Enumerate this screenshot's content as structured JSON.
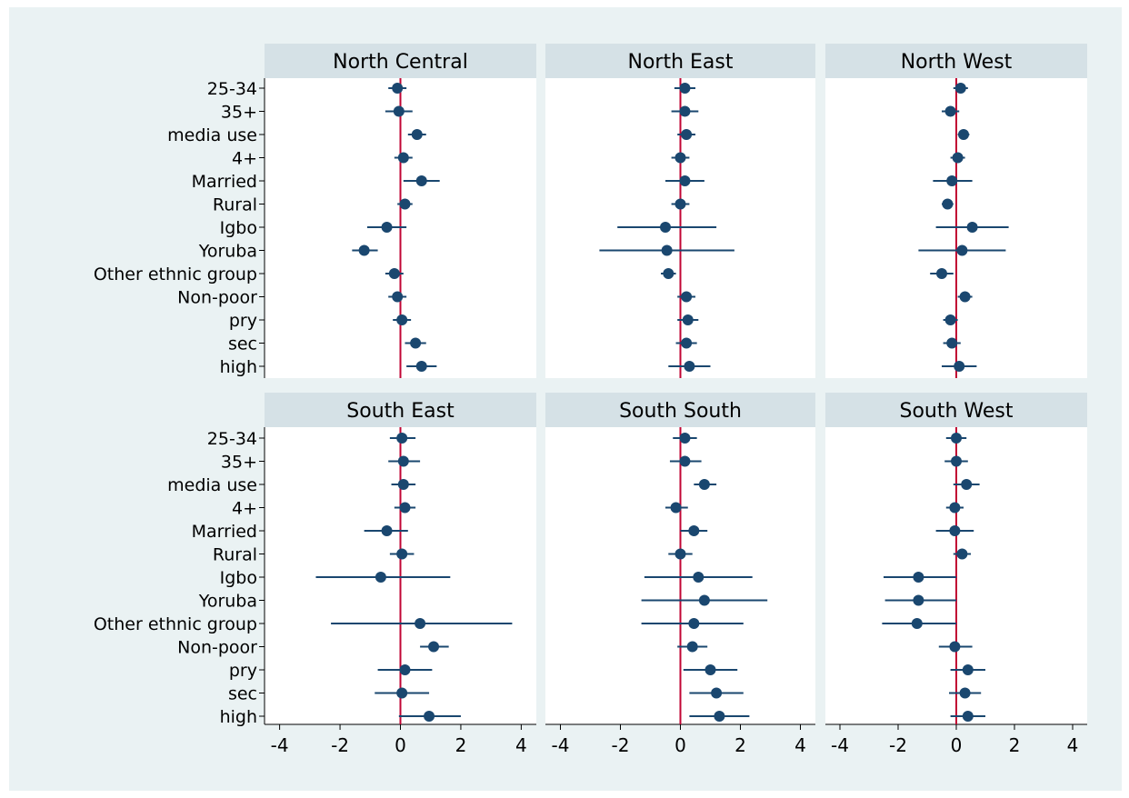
{
  "chart_data": {
    "type": "coefficient-plot",
    "xlim": [
      -4.5,
      4.5
    ],
    "xticks": [
      -4,
      -2,
      0,
      2,
      4
    ],
    "reference_line": 0,
    "grid": false,
    "categories": [
      "25-34",
      "35+",
      "media use",
      "4+",
      "Married",
      "Rural",
      "Igbo",
      "Yoruba",
      "Other ethnic group",
      "Non-poor",
      "pry",
      "sec",
      "high"
    ],
    "colors": {
      "background": "#ffffff",
      "plot_region_outer": "#eaf2f3",
      "panel_header": "#d5e1e6",
      "marker": "#1a476f",
      "reference_line": "#c10534",
      "axis": "#000000"
    },
    "panels": [
      {
        "title": "North Central",
        "points": [
          {
            "est": -0.1,
            "lo": -0.4,
            "hi": 0.2
          },
          {
            "est": -0.05,
            "lo": -0.5,
            "hi": 0.4
          },
          {
            "est": 0.55,
            "lo": 0.25,
            "hi": 0.85
          },
          {
            "est": 0.1,
            "lo": -0.2,
            "hi": 0.4
          },
          {
            "est": 0.7,
            "lo": 0.1,
            "hi": 1.3
          },
          {
            "est": 0.15,
            "lo": -0.1,
            "hi": 0.4
          },
          {
            "est": -0.45,
            "lo": -1.1,
            "hi": 0.2
          },
          {
            "est": -1.2,
            "lo": -1.6,
            "hi": -0.75
          },
          {
            "est": -0.2,
            "lo": -0.5,
            "hi": 0.1
          },
          {
            "est": -0.1,
            "lo": -0.4,
            "hi": 0.2
          },
          {
            "est": 0.05,
            "lo": -0.25,
            "hi": 0.35
          },
          {
            "est": 0.5,
            "lo": 0.15,
            "hi": 0.85
          },
          {
            "est": 0.7,
            "lo": 0.2,
            "hi": 1.2
          }
        ]
      },
      {
        "title": "North East",
        "points": [
          {
            "est": 0.15,
            "lo": -0.2,
            "hi": 0.5
          },
          {
            "est": 0.15,
            "lo": -0.3,
            "hi": 0.6
          },
          {
            "est": 0.2,
            "lo": -0.1,
            "hi": 0.5
          },
          {
            "est": 0.0,
            "lo": -0.3,
            "hi": 0.3
          },
          {
            "est": 0.15,
            "lo": -0.5,
            "hi": 0.8
          },
          {
            "est": 0.0,
            "lo": -0.3,
            "hi": 0.3
          },
          {
            "est": -0.5,
            "lo": -2.1,
            "hi": 1.2
          },
          {
            "est": -0.45,
            "lo": -2.7,
            "hi": 1.8
          },
          {
            "est": -0.4,
            "lo": -0.65,
            "hi": -0.15
          },
          {
            "est": 0.2,
            "lo": -0.1,
            "hi": 0.5
          },
          {
            "est": 0.25,
            "lo": -0.1,
            "hi": 0.6
          },
          {
            "est": 0.2,
            "lo": -0.15,
            "hi": 0.55
          },
          {
            "est": 0.3,
            "lo": -0.4,
            "hi": 1.0
          }
        ]
      },
      {
        "title": "North West",
        "points": [
          {
            "est": 0.15,
            "lo": -0.1,
            "hi": 0.4
          },
          {
            "est": -0.2,
            "lo": -0.5,
            "hi": 0.1
          },
          {
            "est": 0.25,
            "lo": 0.05,
            "hi": 0.45
          },
          {
            "est": 0.05,
            "lo": -0.2,
            "hi": 0.3
          },
          {
            "est": -0.15,
            "lo": -0.8,
            "hi": 0.55
          },
          {
            "est": -0.3,
            "lo": -0.5,
            "hi": -0.1
          },
          {
            "est": 0.55,
            "lo": -0.7,
            "hi": 1.8
          },
          {
            "est": 0.2,
            "lo": -1.3,
            "hi": 1.7
          },
          {
            "est": -0.5,
            "lo": -0.9,
            "hi": -0.1
          },
          {
            "est": 0.3,
            "lo": 0.05,
            "hi": 0.55
          },
          {
            "est": -0.2,
            "lo": -0.45,
            "hi": 0.05
          },
          {
            "est": -0.15,
            "lo": -0.45,
            "hi": 0.15
          },
          {
            "est": 0.1,
            "lo": -0.5,
            "hi": 0.7
          }
        ]
      },
      {
        "title": "South East",
        "points": [
          {
            "est": 0.05,
            "lo": -0.35,
            "hi": 0.5
          },
          {
            "est": 0.1,
            "lo": -0.4,
            "hi": 0.65
          },
          {
            "est": 0.1,
            "lo": -0.3,
            "hi": 0.5
          },
          {
            "est": 0.15,
            "lo": -0.2,
            "hi": 0.5
          },
          {
            "est": -0.45,
            "lo": -1.2,
            "hi": 0.25
          },
          {
            "est": 0.05,
            "lo": -0.35,
            "hi": 0.45
          },
          {
            "est": -0.65,
            "lo": -2.8,
            "hi": 1.65
          },
          {
            "est": null,
            "lo": null,
            "hi": null
          },
          {
            "est": 0.65,
            "lo": -2.3,
            "hi": 3.7
          },
          {
            "est": 1.1,
            "lo": 0.65,
            "hi": 1.6
          },
          {
            "est": 0.15,
            "lo": -0.75,
            "hi": 1.05
          },
          {
            "est": 0.05,
            "lo": -0.85,
            "hi": 0.95
          },
          {
            "est": 0.95,
            "lo": -0.05,
            "hi": 2.0
          }
        ]
      },
      {
        "title": "South South",
        "points": [
          {
            "est": 0.15,
            "lo": -0.25,
            "hi": 0.55
          },
          {
            "est": 0.15,
            "lo": -0.35,
            "hi": 0.7
          },
          {
            "est": 0.8,
            "lo": 0.45,
            "hi": 1.2
          },
          {
            "est": -0.15,
            "lo": -0.5,
            "hi": 0.25
          },
          {
            "est": 0.45,
            "lo": 0.0,
            "hi": 0.9
          },
          {
            "est": 0.0,
            "lo": -0.4,
            "hi": 0.4
          },
          {
            "est": 0.6,
            "lo": -1.2,
            "hi": 2.4
          },
          {
            "est": 0.8,
            "lo": -1.3,
            "hi": 2.9
          },
          {
            "est": 0.45,
            "lo": -1.3,
            "hi": 2.1
          },
          {
            "est": 0.4,
            "lo": -0.1,
            "hi": 0.9
          },
          {
            "est": 1.0,
            "lo": 0.1,
            "hi": 1.9
          },
          {
            "est": 1.2,
            "lo": 0.3,
            "hi": 2.1
          },
          {
            "est": 1.3,
            "lo": 0.3,
            "hi": 2.3
          }
        ]
      },
      {
        "title": "South West",
        "points": [
          {
            "est": 0.0,
            "lo": -0.35,
            "hi": 0.35
          },
          {
            "est": 0.0,
            "lo": -0.4,
            "hi": 0.4
          },
          {
            "est": 0.35,
            "lo": -0.1,
            "hi": 0.8
          },
          {
            "est": -0.05,
            "lo": -0.35,
            "hi": 0.25
          },
          {
            "est": -0.05,
            "lo": -0.7,
            "hi": 0.6
          },
          {
            "est": 0.2,
            "lo": -0.1,
            "hi": 0.5
          },
          {
            "est": -1.3,
            "lo": -2.5,
            "hi": 0.0
          },
          {
            "est": -1.3,
            "lo": -2.45,
            "hi": 0.0
          },
          {
            "est": -1.35,
            "lo": -2.55,
            "hi": 0.0
          },
          {
            "est": -0.05,
            "lo": -0.6,
            "hi": 0.55
          },
          {
            "est": 0.4,
            "lo": -0.2,
            "hi": 1.0
          },
          {
            "est": 0.3,
            "lo": -0.25,
            "hi": 0.85
          },
          {
            "est": 0.4,
            "lo": -0.2,
            "hi": 1.0
          }
        ]
      }
    ]
  }
}
